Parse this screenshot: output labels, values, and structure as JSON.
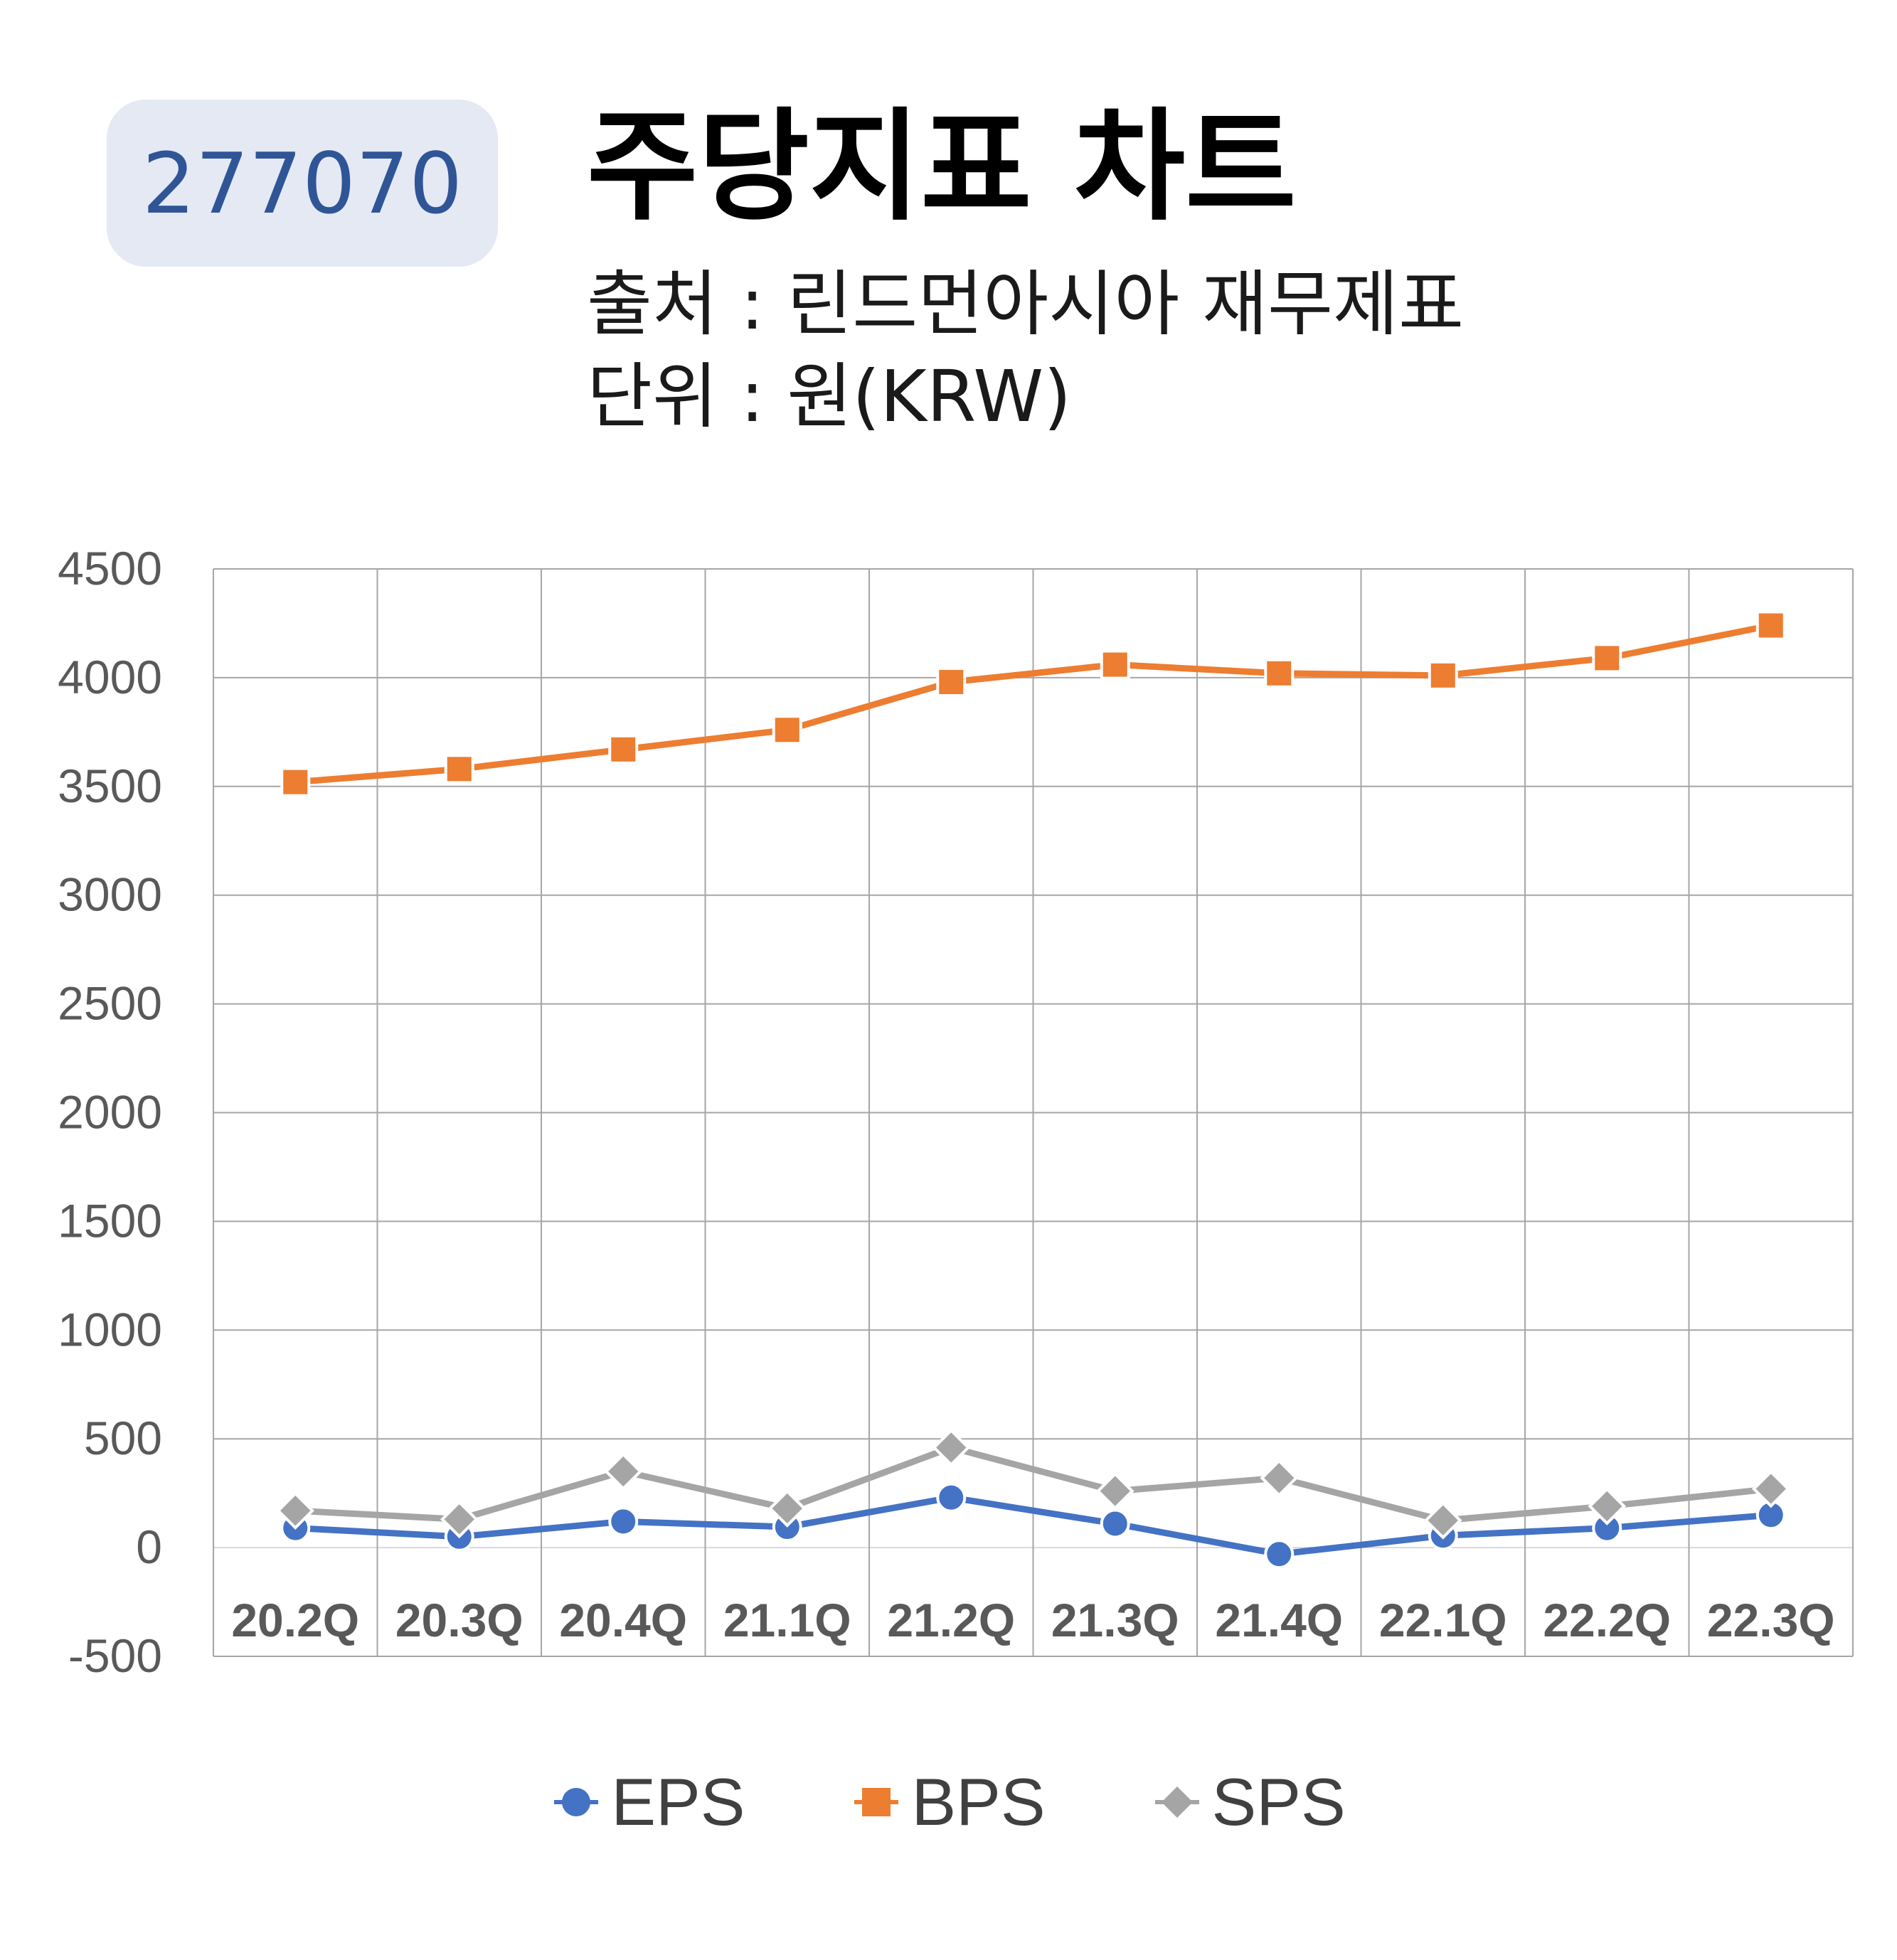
{
  "header": {
    "code": "277070",
    "title": "주당지표 차트",
    "source": "출처 : 린드먼아시아 재무제표",
    "unit": "단위 : 원(KRW)"
  },
  "colors": {
    "EPS": "#4472c4",
    "BPS": "#ed7d31",
    "SPS": "#a5a5a5",
    "grid": "#a6a6a6",
    "badge_bg": "#e4e9f4",
    "badge_text": "#2f5597"
  },
  "chart_data": {
    "type": "line",
    "categories": [
      "20.2Q",
      "20.3Q",
      "20.4Q",
      "21.1Q",
      "21.2Q",
      "21.3Q",
      "21.4Q",
      "22.1Q",
      "22.2Q",
      "22.3Q"
    ],
    "series": [
      {
        "name": "EPS",
        "marker": "circle",
        "values": [
          90,
          50,
          120,
          95,
          230,
          110,
          -30,
          55,
          90,
          150
        ]
      },
      {
        "name": "BPS",
        "marker": "square",
        "values": [
          3520,
          3580,
          3670,
          3760,
          3980,
          4060,
          4020,
          4010,
          4090,
          4240
        ]
      },
      {
        "name": "SPS",
        "marker": "diamond",
        "values": [
          170,
          130,
          350,
          180,
          460,
          260,
          320,
          125,
          190,
          270
        ]
      }
    ],
    "ylim": [
      -500,
      4500
    ],
    "yticks": [
      "4500",
      "4000",
      "3500",
      "3000",
      "2500",
      "2000",
      "1500",
      "1000",
      "500",
      "0",
      "-500"
    ],
    "grid": true,
    "legend": "bottom"
  }
}
